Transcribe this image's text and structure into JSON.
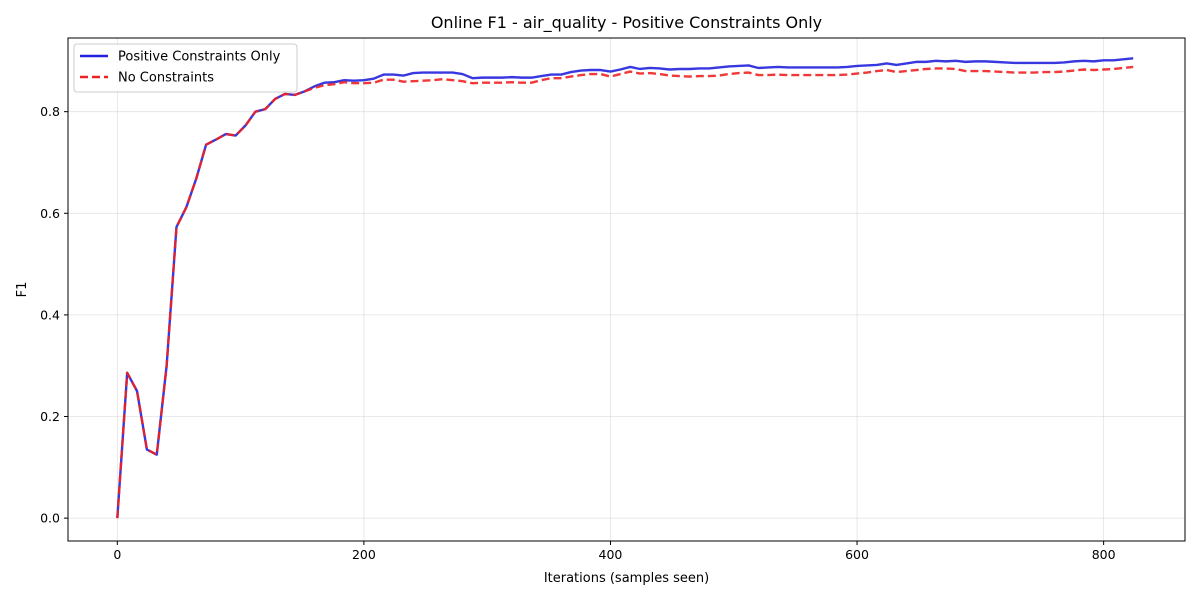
{
  "chart_data": {
    "type": "line",
    "title": "Online F1 - air_quality - Positive Constraints Only",
    "xlabel": "Iterations (samples seen)",
    "ylabel": "F1",
    "xlim": [
      -40,
      866
    ],
    "ylim": [
      -0.045,
      0.945
    ],
    "xticks": [
      0,
      200,
      400,
      600,
      800
    ],
    "xtick_labels": [
      "0",
      "200",
      "400",
      "600",
      "800"
    ],
    "yticks": [
      0.0,
      0.2,
      0.4,
      0.6,
      0.8
    ],
    "ytick_labels": [
      "0.0",
      "0.2",
      "0.4",
      "0.6",
      "0.8"
    ],
    "grid": true,
    "legend_position": "upper-left",
    "series": [
      {
        "name": "Positive Constraints Only",
        "color": "#2222dd",
        "style": "solid",
        "points": [
          [
            0,
            0.0
          ],
          [
            8,
            0.286
          ],
          [
            16,
            0.25
          ],
          [
            24,
            0.135
          ],
          [
            32,
            0.125
          ],
          [
            40,
            0.3
          ],
          [
            48,
            0.573
          ],
          [
            56,
            0.612
          ],
          [
            64,
            0.668
          ],
          [
            72,
            0.735
          ],
          [
            80,
            0.745
          ],
          [
            88,
            0.756
          ],
          [
            96,
            0.753
          ],
          [
            104,
            0.773
          ],
          [
            112,
            0.8
          ],
          [
            120,
            0.805
          ],
          [
            128,
            0.825
          ],
          [
            136,
            0.835
          ],
          [
            144,
            0.833
          ],
          [
            152,
            0.84
          ],
          [
            160,
            0.85
          ],
          [
            168,
            0.857
          ],
          [
            176,
            0.858
          ],
          [
            184,
            0.862
          ],
          [
            192,
            0.861
          ],
          [
            200,
            0.862
          ],
          [
            208,
            0.865
          ],
          [
            216,
            0.873
          ],
          [
            224,
            0.873
          ],
          [
            232,
            0.871
          ],
          [
            240,
            0.876
          ],
          [
            248,
            0.877
          ],
          [
            256,
            0.877
          ],
          [
            264,
            0.877
          ],
          [
            272,
            0.877
          ],
          [
            280,
            0.874
          ],
          [
            288,
            0.866
          ],
          [
            296,
            0.867
          ],
          [
            304,
            0.867
          ],
          [
            312,
            0.867
          ],
          [
            320,
            0.868
          ],
          [
            328,
            0.867
          ],
          [
            336,
            0.867
          ],
          [
            344,
            0.87
          ],
          [
            352,
            0.873
          ],
          [
            360,
            0.873
          ],
          [
            368,
            0.878
          ],
          [
            376,
            0.881
          ],
          [
            384,
            0.882
          ],
          [
            392,
            0.882
          ],
          [
            400,
            0.879
          ],
          [
            408,
            0.883
          ],
          [
            416,
            0.888
          ],
          [
            424,
            0.884
          ],
          [
            432,
            0.886
          ],
          [
            440,
            0.885
          ],
          [
            448,
            0.883
          ],
          [
            456,
            0.884
          ],
          [
            464,
            0.884
          ],
          [
            472,
            0.885
          ],
          [
            480,
            0.885
          ],
          [
            488,
            0.887
          ],
          [
            496,
            0.889
          ],
          [
            504,
            0.89
          ],
          [
            512,
            0.891
          ],
          [
            520,
            0.886
          ],
          [
            528,
            0.887
          ],
          [
            536,
            0.888
          ],
          [
            544,
            0.887
          ],
          [
            552,
            0.887
          ],
          [
            560,
            0.887
          ],
          [
            568,
            0.887
          ],
          [
            576,
            0.887
          ],
          [
            584,
            0.887
          ],
          [
            592,
            0.888
          ],
          [
            600,
            0.89
          ],
          [
            608,
            0.891
          ],
          [
            616,
            0.892
          ],
          [
            624,
            0.895
          ],
          [
            632,
            0.892
          ],
          [
            640,
            0.895
          ],
          [
            648,
            0.898
          ],
          [
            656,
            0.898
          ],
          [
            664,
            0.9
          ],
          [
            672,
            0.899
          ],
          [
            680,
            0.9
          ],
          [
            688,
            0.898
          ],
          [
            696,
            0.899
          ],
          [
            704,
            0.899
          ],
          [
            712,
            0.898
          ],
          [
            720,
            0.897
          ],
          [
            728,
            0.896
          ],
          [
            736,
            0.896
          ],
          [
            744,
            0.896
          ],
          [
            752,
            0.896
          ],
          [
            760,
            0.896
          ],
          [
            768,
            0.897
          ],
          [
            776,
            0.899
          ],
          [
            784,
            0.9
          ],
          [
            792,
            0.899
          ],
          [
            800,
            0.901
          ],
          [
            808,
            0.901
          ],
          [
            816,
            0.903
          ],
          [
            824,
            0.905
          ]
        ]
      },
      {
        "name": "No Constraints",
        "color": "#ee2222",
        "style": "dashed",
        "points": [
          [
            0,
            0.0
          ],
          [
            8,
            0.286
          ],
          [
            16,
            0.25
          ],
          [
            24,
            0.135
          ],
          [
            32,
            0.125
          ],
          [
            40,
            0.3
          ],
          [
            48,
            0.573
          ],
          [
            56,
            0.612
          ],
          [
            64,
            0.668
          ],
          [
            72,
            0.735
          ],
          [
            80,
            0.745
          ],
          [
            88,
            0.756
          ],
          [
            96,
            0.753
          ],
          [
            104,
            0.773
          ],
          [
            112,
            0.8
          ],
          [
            120,
            0.805
          ],
          [
            128,
            0.825
          ],
          [
            136,
            0.835
          ],
          [
            144,
            0.833
          ],
          [
            152,
            0.84
          ],
          [
            160,
            0.847
          ],
          [
            168,
            0.852
          ],
          [
            176,
            0.854
          ],
          [
            184,
            0.858
          ],
          [
            192,
            0.856
          ],
          [
            200,
            0.856
          ],
          [
            208,
            0.857
          ],
          [
            216,
            0.863
          ],
          [
            224,
            0.863
          ],
          [
            232,
            0.859
          ],
          [
            240,
            0.86
          ],
          [
            248,
            0.861
          ],
          [
            256,
            0.862
          ],
          [
            264,
            0.864
          ],
          [
            272,
            0.862
          ],
          [
            280,
            0.86
          ],
          [
            288,
            0.856
          ],
          [
            296,
            0.857
          ],
          [
            304,
            0.857
          ],
          [
            312,
            0.857
          ],
          [
            320,
            0.858
          ],
          [
            328,
            0.857
          ],
          [
            336,
            0.857
          ],
          [
            344,
            0.862
          ],
          [
            352,
            0.866
          ],
          [
            360,
            0.866
          ],
          [
            368,
            0.869
          ],
          [
            376,
            0.872
          ],
          [
            384,
            0.874
          ],
          [
            392,
            0.874
          ],
          [
            400,
            0.869
          ],
          [
            408,
            0.874
          ],
          [
            416,
            0.879
          ],
          [
            424,
            0.875
          ],
          [
            432,
            0.876
          ],
          [
            440,
            0.874
          ],
          [
            448,
            0.871
          ],
          [
            456,
            0.87
          ],
          [
            464,
            0.869
          ],
          [
            472,
            0.87
          ],
          [
            480,
            0.87
          ],
          [
            488,
            0.871
          ],
          [
            496,
            0.874
          ],
          [
            504,
            0.876
          ],
          [
            512,
            0.877
          ],
          [
            520,
            0.872
          ],
          [
            528,
            0.872
          ],
          [
            536,
            0.873
          ],
          [
            544,
            0.872
          ],
          [
            552,
            0.872
          ],
          [
            560,
            0.872
          ],
          [
            568,
            0.872
          ],
          [
            576,
            0.872
          ],
          [
            584,
            0.872
          ],
          [
            592,
            0.873
          ],
          [
            600,
            0.875
          ],
          [
            608,
            0.877
          ],
          [
            616,
            0.88
          ],
          [
            624,
            0.882
          ],
          [
            632,
            0.878
          ],
          [
            640,
            0.88
          ],
          [
            648,
            0.882
          ],
          [
            656,
            0.884
          ],
          [
            664,
            0.885
          ],
          [
            672,
            0.885
          ],
          [
            680,
            0.884
          ],
          [
            688,
            0.88
          ],
          [
            696,
            0.88
          ],
          [
            704,
            0.88
          ],
          [
            712,
            0.879
          ],
          [
            720,
            0.878
          ],
          [
            728,
            0.877
          ],
          [
            736,
            0.877
          ],
          [
            744,
            0.877
          ],
          [
            752,
            0.878
          ],
          [
            760,
            0.878
          ],
          [
            768,
            0.879
          ],
          [
            776,
            0.881
          ],
          [
            784,
            0.883
          ],
          [
            792,
            0.882
          ],
          [
            800,
            0.883
          ],
          [
            808,
            0.884
          ],
          [
            816,
            0.886
          ],
          [
            824,
            0.888
          ]
        ]
      }
    ]
  }
}
